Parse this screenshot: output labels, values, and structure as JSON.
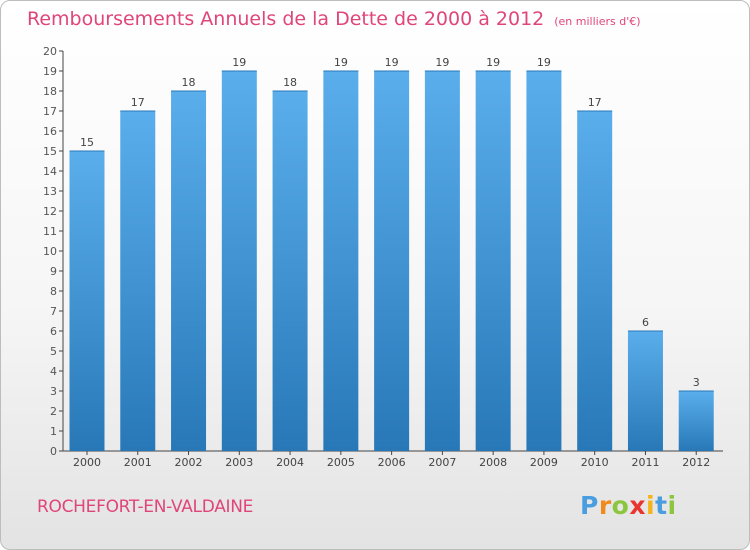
{
  "title": "Remboursements Annuels de la Dette de 2000 à 2012",
  "unit": "(en milliers d'€)",
  "commune": "ROCHEFORT-EN-VALDAINE",
  "logo": {
    "letters": [
      "P",
      "r",
      "o",
      "x",
      "i",
      "t",
      "i"
    ],
    "colors": [
      "#4a9ee0",
      "#f08a1c",
      "#8cc63f",
      "#e8352f",
      "#f5b31c",
      "#4a9ee0",
      "#8cc63f"
    ]
  },
  "colors": {
    "bar": "#4a9ee0",
    "bar_light": "#5aaeeb",
    "bar_dark": "#2878b8",
    "title": "#e0457a",
    "axis": "#444444"
  },
  "chart_data": {
    "type": "bar",
    "categories": [
      "2000",
      "2001",
      "2002",
      "2003",
      "2004",
      "2005",
      "2006",
      "2007",
      "2008",
      "2009",
      "2010",
      "2011",
      "2012"
    ],
    "values": [
      15,
      17,
      18,
      19,
      18,
      19,
      19,
      19,
      19,
      19,
      17,
      6,
      3
    ],
    "value_labels": [
      "15",
      "17",
      "18",
      "19",
      "18",
      "19",
      "19",
      "19",
      "19",
      "19",
      "17",
      "6",
      "3"
    ],
    "title": "Remboursements Annuels de la Dette de 2000 à 2012",
    "xlabel": "",
    "ylabel": "",
    "ylim": [
      0,
      20
    ],
    "yticks": [
      "0",
      "1",
      "2",
      "3",
      "4",
      "5",
      "6",
      "7",
      "8",
      "9",
      "10",
      "11",
      "12",
      "13",
      "14",
      "15",
      "16",
      "17",
      "18",
      "19",
      "20"
    ],
    "grid": false,
    "legend": "none"
  }
}
